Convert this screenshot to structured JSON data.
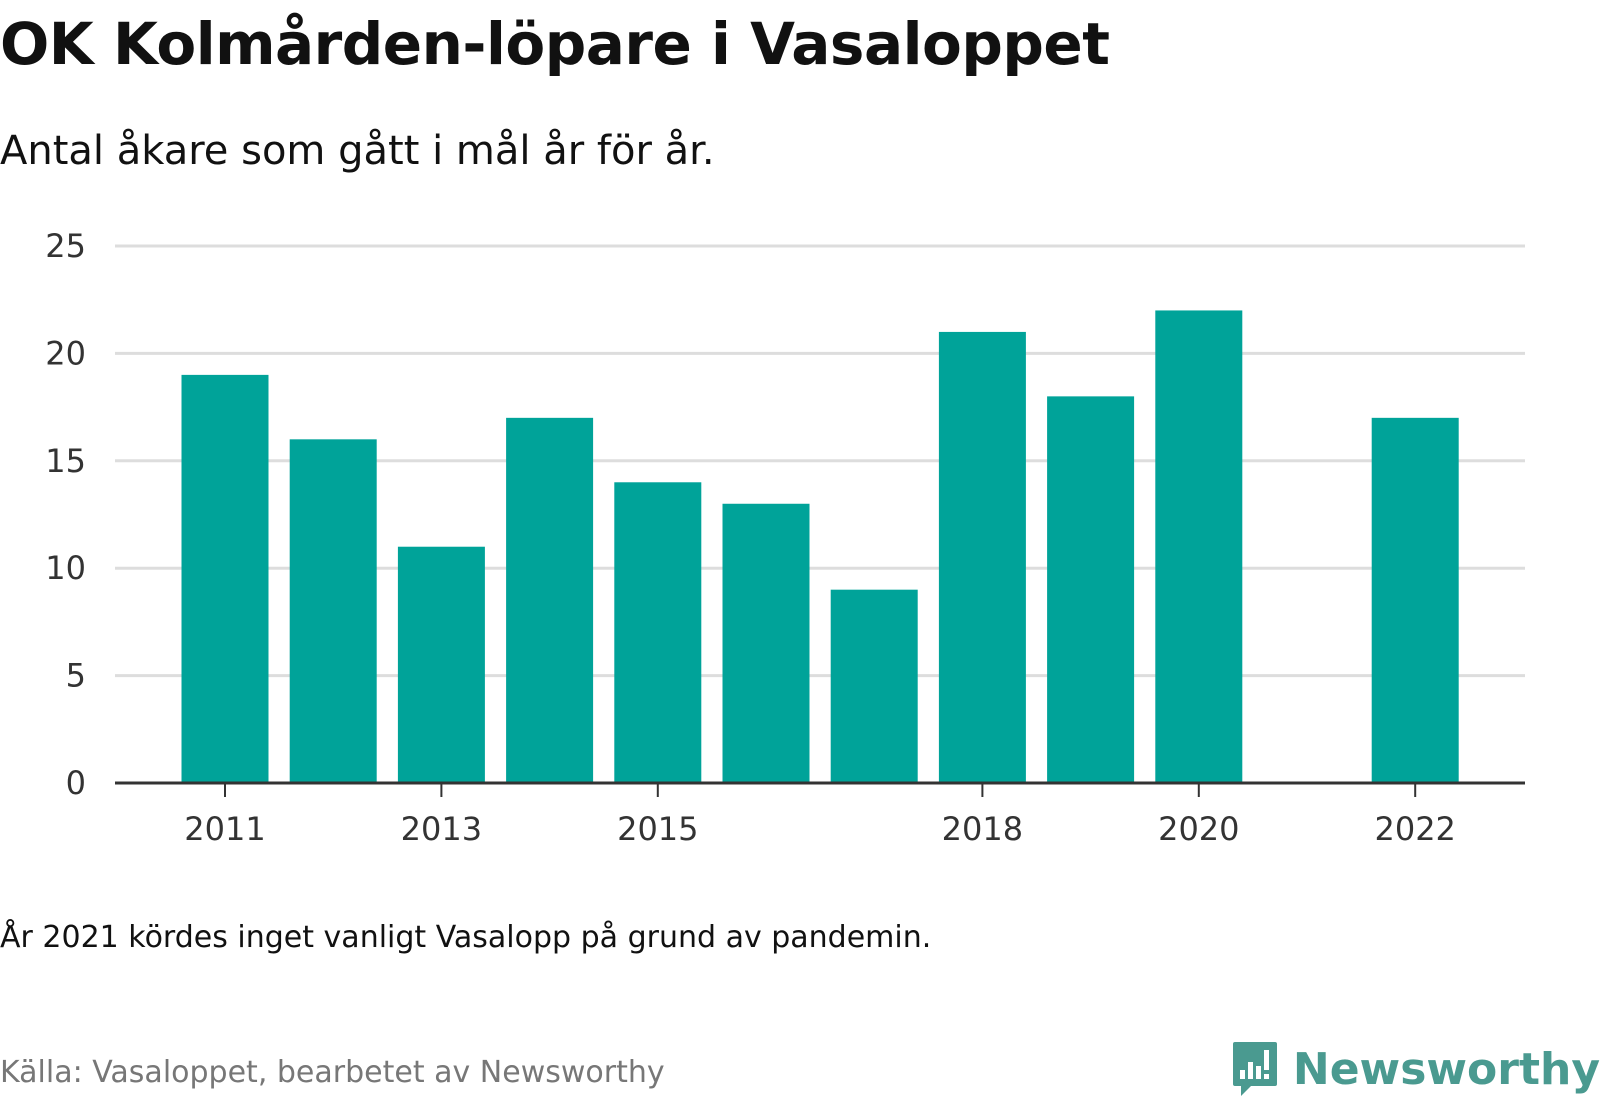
{
  "title": "OK Kolmården-löpare i Vasaloppet",
  "subtitle": "Antal åkare som gått i mål år för år.",
  "note": "År 2021 kördes inget vanligt Vasalopp på grund av pandemin.",
  "source": "Källa: Vasaloppet, bearbetet av Newsworthy",
  "brand": {
    "name": "Newsworthy",
    "icon": "newsworthy-logo-icon",
    "color": "#4a9a90"
  },
  "colors": {
    "bar": "#00a399",
    "grid": "#dddddd",
    "axis": "#333333",
    "text": "#333333"
  },
  "chart_data": {
    "type": "bar",
    "title": "OK Kolmården-löpare i Vasaloppet",
    "xlabel": "",
    "ylabel": "",
    "categories": [
      "2011",
      "2012",
      "2013",
      "2014",
      "2015",
      "2016",
      "2017",
      "2018",
      "2019",
      "2020",
      "2021",
      "2022"
    ],
    "values": [
      19,
      16,
      11,
      17,
      14,
      13,
      9,
      21,
      18,
      22,
      null,
      17
    ],
    "x_tick_labels": [
      "2011",
      "2013",
      "2015",
      "2018",
      "2020",
      "2022"
    ],
    "y_ticks": [
      0,
      5,
      10,
      15,
      20,
      25
    ],
    "ylim": [
      0,
      25
    ],
    "grid": true,
    "legend": "none"
  }
}
